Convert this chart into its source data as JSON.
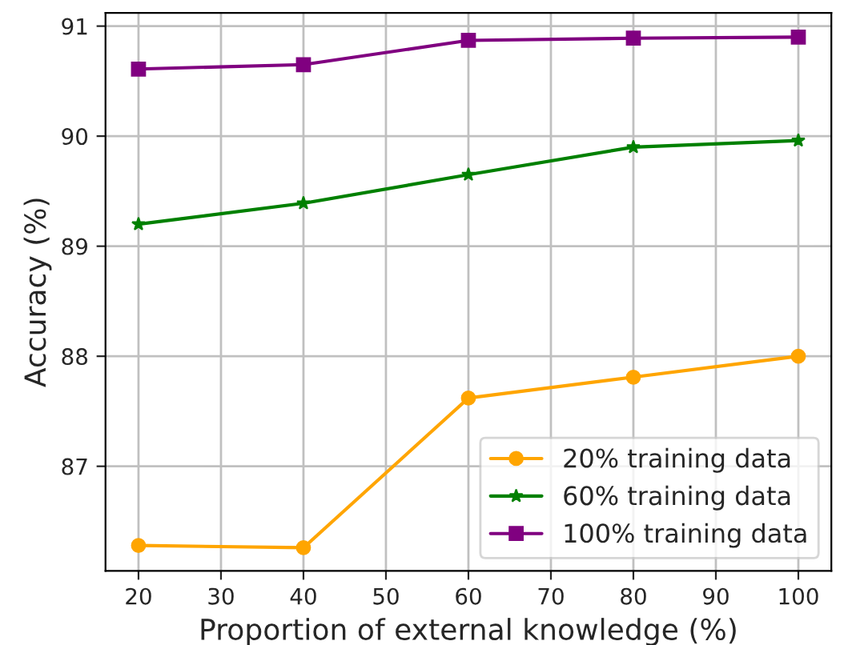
{
  "chart_data": {
    "type": "line",
    "xlabel": "Proportion of external knowledge (%)",
    "ylabel": "Accuracy (%)",
    "x": [
      20,
      40,
      60,
      80,
      100
    ],
    "series": [
      {
        "name": "20% training data",
        "color": "#ffa500",
        "marker": "circle",
        "values": [
          86.28,
          86.26,
          87.62,
          87.81,
          88.0
        ]
      },
      {
        "name": "60% training data",
        "color": "#008000",
        "marker": "star",
        "values": [
          89.2,
          89.39,
          89.65,
          89.9,
          89.96
        ]
      },
      {
        "name": "100% training data",
        "color": "#800080",
        "marker": "square",
        "values": [
          90.61,
          90.65,
          90.87,
          90.89,
          90.9
        ]
      }
    ],
    "xlim": [
      16,
      104
    ],
    "xticks": [
      20,
      30,
      40,
      50,
      60,
      70,
      80,
      90,
      100
    ],
    "ylim": [
      86.05,
      91.12
    ],
    "yticks": [
      87,
      88,
      89,
      90,
      91
    ],
    "grid": true,
    "legend": "bottom right"
  }
}
